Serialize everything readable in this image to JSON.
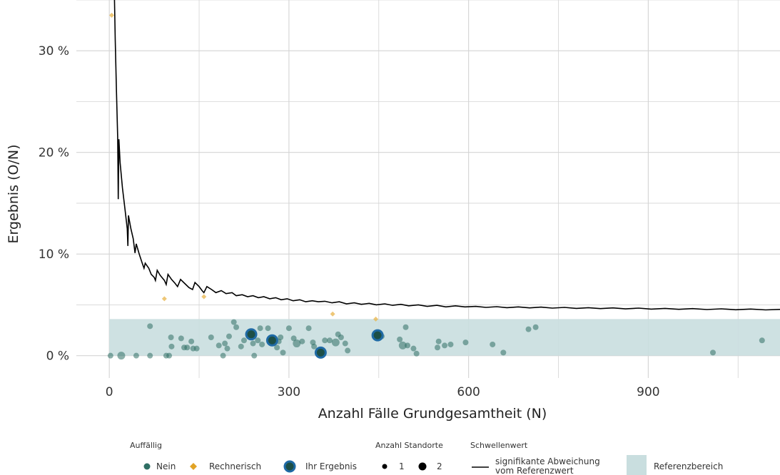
{
  "chart_data": {
    "type": "scatter",
    "xlabel": "Anzahl Fälle Grundgesamtheit (N)",
    "ylabel": "Ergebnis (O/N)",
    "xlim": [
      -55,
      1120
    ],
    "ylim": [
      -2.2,
      35
    ],
    "x_ticks": [
      0,
      300,
      600,
      900
    ],
    "x_tick_labels": [
      "0",
      "300",
      "600",
      "900"
    ],
    "y_ticks": [
      0,
      10,
      20,
      30
    ],
    "y_tick_labels": [
      "0 %",
      "10 %",
      "20 %",
      "30 %"
    ],
    "grid": true,
    "legend_position": "bottom",
    "reference_range": {
      "label": "Referenzbereich",
      "y_min": 0,
      "y_max": 3.6
    },
    "threshold": {
      "label": "signifikante Abweichung vom Referenzwert",
      "points": [
        [
          8,
          37
        ],
        [
          10,
          31
        ],
        [
          12,
          26
        ],
        [
          14,
          21.5
        ],
        [
          15,
          15.4
        ],
        [
          16,
          21.3
        ],
        [
          18,
          19
        ],
        [
          22,
          16.5
        ],
        [
          26,
          14.5
        ],
        [
          30,
          12.5
        ],
        [
          31,
          10.8
        ],
        [
          32,
          13.8
        ],
        [
          36,
          12.5
        ],
        [
          40,
          11.5
        ],
        [
          43,
          10.1
        ],
        [
          45,
          11.0
        ],
        [
          50,
          10.0
        ],
        [
          55,
          9.1
        ],
        [
          58,
          8.6
        ],
        [
          60,
          9.1
        ],
        [
          66,
          8.6
        ],
        [
          70,
          8.0
        ],
        [
          75,
          7.7
        ],
        [
          77,
          7.4
        ],
        [
          80,
          8.4
        ],
        [
          85,
          7.9
        ],
        [
          92,
          7.4
        ],
        [
          95,
          7.0
        ],
        [
          98,
          8.0
        ],
        [
          104,
          7.5
        ],
        [
          110,
          7.1
        ],
        [
          114,
          6.8
        ],
        [
          119,
          7.5
        ],
        [
          126,
          7.1
        ],
        [
          133,
          6.7
        ],
        [
          139,
          6.5
        ],
        [
          143,
          7.2
        ],
        [
          150,
          6.8
        ],
        [
          155,
          6.4
        ],
        [
          158,
          6.2
        ],
        [
          163,
          6.8
        ],
        [
          171,
          6.5
        ],
        [
          178,
          6.2
        ],
        [
          187,
          6.4
        ],
        [
          195,
          6.1
        ],
        [
          205,
          6.2
        ],
        [
          212,
          5.9
        ],
        [
          222,
          6.0
        ],
        [
          231,
          5.8
        ],
        [
          240,
          5.9
        ],
        [
          249,
          5.7
        ],
        [
          258,
          5.8
        ],
        [
          268,
          5.6
        ],
        [
          278,
          5.7
        ],
        [
          287,
          5.5
        ],
        [
          297,
          5.6
        ],
        [
          307,
          5.4
        ],
        [
          318,
          5.5
        ],
        [
          328,
          5.3
        ],
        [
          339,
          5.4
        ],
        [
          349,
          5.3
        ],
        [
          360,
          5.35
        ],
        [
          372,
          5.2
        ],
        [
          384,
          5.3
        ],
        [
          396,
          5.1
        ],
        [
          409,
          5.2
        ],
        [
          421,
          5.05
        ],
        [
          434,
          5.15
        ],
        [
          446,
          5.0
        ],
        [
          460,
          5.1
        ],
        [
          473,
          4.95
        ],
        [
          487,
          5.05
        ],
        [
          500,
          4.9
        ],
        [
          516,
          5.0
        ],
        [
          531,
          4.85
        ],
        [
          547,
          4.95
        ],
        [
          562,
          4.8
        ],
        [
          578,
          4.9
        ],
        [
          594,
          4.8
        ],
        [
          612,
          4.85
        ],
        [
          629,
          4.75
        ],
        [
          647,
          4.82
        ],
        [
          664,
          4.72
        ],
        [
          683,
          4.8
        ],
        [
          702,
          4.7
        ],
        [
          721,
          4.78
        ],
        [
          740,
          4.68
        ],
        [
          760,
          4.75
        ],
        [
          780,
          4.65
        ],
        [
          800,
          4.72
        ],
        [
          820,
          4.63
        ],
        [
          841,
          4.7
        ],
        [
          862,
          4.6
        ],
        [
          884,
          4.68
        ],
        [
          905,
          4.58
        ],
        [
          928,
          4.65
        ],
        [
          951,
          4.56
        ],
        [
          974,
          4.63
        ],
        [
          998,
          4.54
        ],
        [
          1022,
          4.61
        ],
        [
          1046,
          4.52
        ],
        [
          1071,
          4.59
        ],
        [
          1096,
          4.5
        ],
        [
          1120,
          4.55
        ]
      ]
    },
    "series": [
      {
        "name": "Nein",
        "color": "#2f6f64",
        "points": [
          [
            2,
            0,
            1
          ],
          [
            20,
            0,
            2
          ],
          [
            45,
            0,
            1
          ],
          [
            68,
            2.9,
            1
          ],
          [
            68,
            0,
            1
          ],
          [
            95,
            0,
            1
          ],
          [
            100,
            0,
            1
          ],
          [
            103,
            1.8,
            1
          ],
          [
            104,
            0.9,
            1
          ],
          [
            120,
            1.7,
            1
          ],
          [
            125,
            0.8,
            1
          ],
          [
            130,
            0.8,
            1
          ],
          [
            137,
            1.4,
            1
          ],
          [
            140,
            0.7,
            1
          ],
          [
            146,
            0.7,
            1
          ],
          [
            170,
            1.8,
            1
          ],
          [
            183,
            1.0,
            1
          ],
          [
            190,
            0,
            1
          ],
          [
            193,
            1.2,
            1
          ],
          [
            197,
            0.7,
            1
          ],
          [
            200,
            1.9,
            1
          ],
          [
            208,
            3.3,
            1
          ],
          [
            212,
            2.8,
            1
          ],
          [
            220,
            0.9,
            1
          ],
          [
            225,
            1.5,
            1
          ],
          [
            232,
            2.2,
            1
          ],
          [
            238,
            1.9,
            1
          ],
          [
            240,
            1.2,
            1
          ],
          [
            242,
            0,
            1
          ],
          [
            248,
            1.5,
            1
          ],
          [
            252,
            2.7,
            1
          ],
          [
            255,
            1.1,
            1
          ],
          [
            265,
            2.7,
            1
          ],
          [
            270,
            1.4,
            1
          ],
          [
            280,
            0.8,
            1
          ],
          [
            283,
            1.4,
            1
          ],
          [
            286,
            1.8,
            1
          ],
          [
            290,
            0.3,
            1
          ],
          [
            300,
            2.7,
            1
          ],
          [
            308,
            1.7,
            1
          ],
          [
            313,
            1.2,
            2
          ],
          [
            322,
            1.4,
            1
          ],
          [
            333,
            2.7,
            1
          ],
          [
            340,
            1.3,
            1
          ],
          [
            342,
            0.9,
            1
          ],
          [
            360,
            1.5,
            1
          ],
          [
            368,
            1.5,
            1
          ],
          [
            378,
            1.3,
            2
          ],
          [
            382,
            2.1,
            1
          ],
          [
            387,
            1.8,
            1
          ],
          [
            394,
            1.2,
            1
          ],
          [
            398,
            0.5,
            1
          ],
          [
            455,
            1.9,
            1
          ],
          [
            485,
            1.6,
            1
          ],
          [
            490,
            1.0,
            2
          ],
          [
            495,
            2.8,
            1
          ],
          [
            498,
            1.0,
            1
          ],
          [
            508,
            0.7,
            1
          ],
          [
            513,
            0.2,
            1
          ],
          [
            548,
            0.8,
            1
          ],
          [
            550,
            1.4,
            1
          ],
          [
            560,
            1.0,
            1
          ],
          [
            570,
            1.1,
            1
          ],
          [
            595,
            1.3,
            1
          ],
          [
            640,
            1.1,
            1
          ],
          [
            658,
            0.3,
            1
          ],
          [
            700,
            2.6,
            1
          ],
          [
            712,
            2.8,
            1
          ],
          [
            1008,
            0.3,
            1
          ],
          [
            1090,
            1.5,
            1
          ]
        ]
      },
      {
        "name": "Rechnerisch",
        "color": "#e8b44a",
        "points": [
          [
            4,
            33.5
          ],
          [
            92,
            5.6
          ],
          [
            158,
            5.8
          ],
          [
            373,
            4.1
          ],
          [
            445,
            3.6
          ]
        ]
      },
      {
        "name": "Ihr Ergebnis",
        "color": "#1f6aa5",
        "points": [
          [
            237,
            2.1
          ],
          [
            272,
            1.5
          ],
          [
            353,
            0.3
          ],
          [
            448,
            2.0
          ]
        ]
      }
    ]
  },
  "legend": {
    "group1_title": "Auffällig",
    "nein": "Nein",
    "rechnerisch": "Rechnerisch",
    "ihr_ergebnis": "Ihr Ergebnis",
    "group2_title": "Anzahl Standorte",
    "size1": "1",
    "size2": "2",
    "group3_title": "Schwellenwert",
    "threshold_line1": "signifikante Abweichung",
    "threshold_line2": "vom Referenzwert",
    "reference": "Referenzbereich"
  },
  "colors": {
    "nein": "#2f6f64",
    "rechnerisch": "#e8b44a",
    "ihr_ergebnis_ring": "#1f6aa5",
    "ihr_ergebnis_core": "#1d4f47",
    "reference_fill": "#c9dedf",
    "threshold_line": "#000000",
    "grid": "#d4d4d4"
  }
}
